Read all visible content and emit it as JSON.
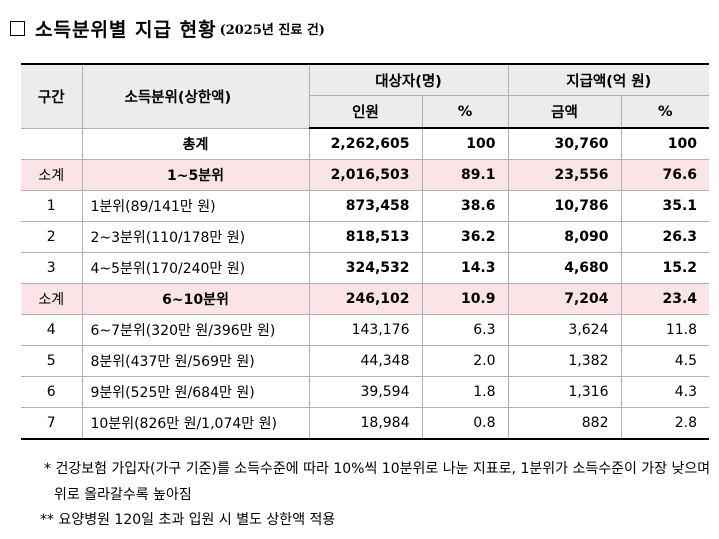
{
  "title": {
    "checkbox_icon": "empty-square",
    "main": "소득분위별 지급 현황",
    "sub": "(2025년 진료 건)"
  },
  "table": {
    "headers": {
      "group": "구간",
      "quintile": "소득분위(상한액)",
      "subjects": "대상자(명)",
      "amount": "지급액(억 원)",
      "people": "인원",
      "pct1": "%",
      "sum": "금액",
      "pct2": "%"
    },
    "total": {
      "label": "총계",
      "people": "2,262,605",
      "pct1": "100",
      "amount": "30,760",
      "pct2": "100"
    },
    "rows": [
      {
        "group": "소계",
        "label": "1~5분위",
        "people": "2,016,503",
        "pct1": "89.1",
        "amount": "23,556",
        "pct2": "76.6"
      },
      {
        "group": "1",
        "label": "1분위(89/141만 원)",
        "people": "873,458",
        "pct1": "38.6",
        "amount": "10,786",
        "pct2": "35.1"
      },
      {
        "group": "2",
        "label": "2~3분위(110/178만 원)",
        "people": "818,513",
        "pct1": "36.2",
        "amount": "8,090",
        "pct2": "26.3"
      },
      {
        "group": "3",
        "label": "4~5분위(170/240만 원)",
        "people": "324,532",
        "pct1": "14.3",
        "amount": "4,680",
        "pct2": "15.2"
      },
      {
        "group": "소계",
        "label": "6~10분위",
        "people": "246,102",
        "pct1": "10.9",
        "amount": "7,204",
        "pct2": "23.4"
      },
      {
        "group": "4",
        "label": "6~7분위(320만 원/396만 원)",
        "people": "143,176",
        "pct1": "6.3",
        "amount": "3,624",
        "pct2": "11.8"
      },
      {
        "group": "5",
        "label": "8분위(437만 원/569만 원)",
        "people": "44,348",
        "pct1": "2.0",
        "amount": "1,382",
        "pct2": "4.5"
      },
      {
        "group": "6",
        "label": "9분위(525만 원/684만 원)",
        "people": "39,594",
        "pct1": "1.8",
        "amount": "1,316",
        "pct2": "4.3"
      },
      {
        "group": "7",
        "label": "10분위(826만 원/1,074만 원)",
        "people": "18,984",
        "pct1": "0.8",
        "amount": "882",
        "pct2": "2.8"
      }
    ]
  },
  "notes": {
    "note1": "* 건강보험 가입자(가구 기준)를 소득수준에 따라 10%씩 10분위로 나눈 지표로, 1분위가 소득수준이 가장 낮으며 위로 올라갈수록 높아짐",
    "note2": "** 요양병원 120일 초과 입원 시 별도 상한액 적용"
  },
  "colors": {
    "highlight_bg": "#fbe4e7",
    "highlight_border": "#e8333d",
    "header_bg": "#ececec"
  }
}
